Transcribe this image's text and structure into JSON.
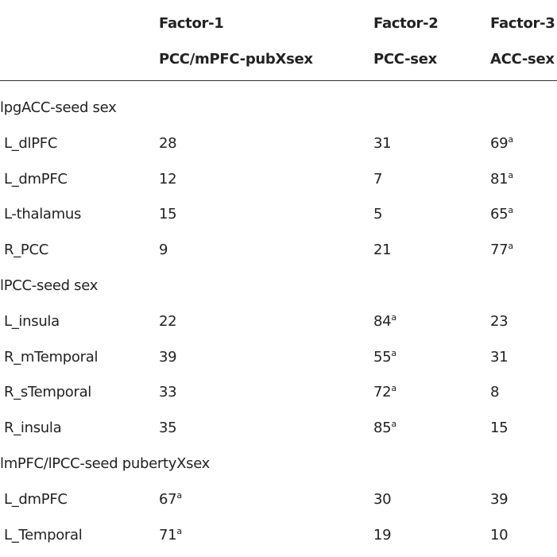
{
  "table": {
    "header": [
      [
        "Factor-1",
        "Factor-2",
        "Factor-3"
      ],
      [
        "PCC/mPFC-pubXsex",
        "PCC-sex",
        "ACC-sex"
      ]
    ],
    "sections": [
      {
        "title": "lpgACC-seed sex",
        "rows": [
          {
            "label": "L_dlPFC",
            "cells": [
              {
                "value": "28"
              },
              {
                "value": "31"
              },
              {
                "value": "69",
                "note": "a"
              }
            ]
          },
          {
            "label": "L_dmPFC",
            "cells": [
              {
                "value": "12"
              },
              {
                "value": "7"
              },
              {
                "value": "81",
                "note": "a"
              }
            ]
          },
          {
            "label": "L-thalamus",
            "cells": [
              {
                "value": "15"
              },
              {
                "value": "5"
              },
              {
                "value": "65",
                "note": "a"
              }
            ]
          },
          {
            "label": "R_PCC",
            "cells": [
              {
                "value": "9"
              },
              {
                "value": "21"
              },
              {
                "value": "77",
                "note": "a"
              }
            ]
          }
        ]
      },
      {
        "title": "lPCC-seed sex",
        "rows": [
          {
            "label": "L_insula",
            "cells": [
              {
                "value": "22"
              },
              {
                "value": "84",
                "note": "a"
              },
              {
                "value": "23"
              }
            ]
          },
          {
            "label": "R_mTemporal",
            "cells": [
              {
                "value": "39"
              },
              {
                "value": "55",
                "note": "a"
              },
              {
                "value": "31"
              }
            ]
          },
          {
            "label": "R_sTemporal",
            "cells": [
              {
                "value": "33"
              },
              {
                "value": "72",
                "note": "a"
              },
              {
                "value": "8"
              }
            ]
          },
          {
            "label": "R_insula",
            "cells": [
              {
                "value": "35"
              },
              {
                "value": "85",
                "note": "a"
              },
              {
                "value": "15"
              }
            ]
          }
        ]
      },
      {
        "title": "lmPFC/lPCC-seed pubertyXsex",
        "rows": [
          {
            "label": "L_dmPFC",
            "cells": [
              {
                "value": "67",
                "note": "a"
              },
              {
                "value": "30"
              },
              {
                "value": "39"
              }
            ]
          },
          {
            "label": "L_Temporal",
            "cells": [
              {
                "value": "71",
                "note": "a"
              },
              {
                "value": "19"
              },
              {
                "value": "10"
              }
            ]
          }
        ]
      }
    ]
  }
}
